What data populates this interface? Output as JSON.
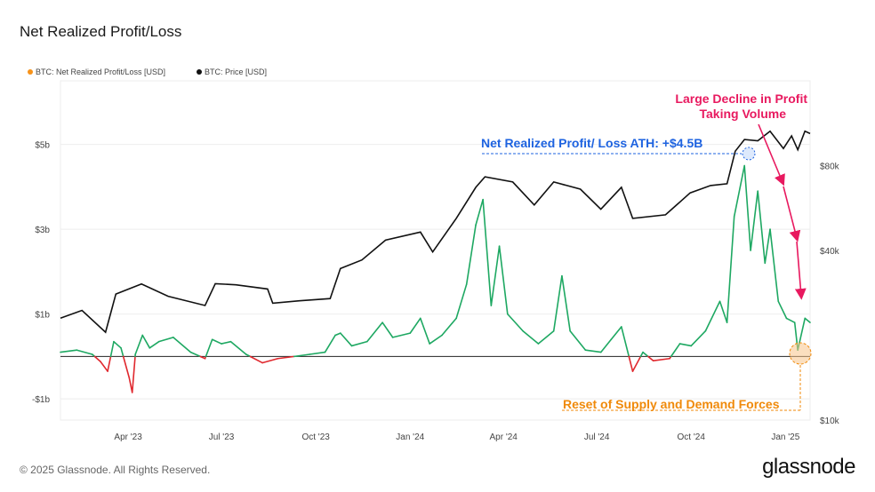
{
  "title": "Net Realized Profit/Loss",
  "footer": "© 2025 Glassnode. All Rights Reserved.",
  "brand": "glassnode",
  "colors": {
    "profit": "#1ea862",
    "loss": "#e0282e",
    "price": "#111111",
    "legend_nrpl": "#f7931a",
    "legend_price": "#111111",
    "pink": "#e8195f",
    "blue": "#1e63e0",
    "orange": "#f08a0a"
  },
  "chart_data": {
    "type": "line",
    "legend": [
      {
        "label": "BTC: Net Realized Profit/Loss [USD]",
        "color": "#f7931a"
      },
      {
        "label": "BTC: Price [USD]",
        "color": "#111111"
      }
    ],
    "x_ticks": [
      "Apr '23",
      "Jul '23",
      "Oct '23",
      "Jan '24",
      "Apr '24",
      "Jul '24",
      "Oct '24",
      "Jan '25"
    ],
    "x_tick_dates": [
      "2023-04-01",
      "2023-07-01",
      "2023-10-01",
      "2024-01-01",
      "2024-04-01",
      "2024-07-01",
      "2024-10-01",
      "2025-01-01"
    ],
    "x_range": [
      "2023-01-25",
      "2025-01-25"
    ],
    "y_left": {
      "label": "",
      "ticks": [
        "-$1b",
        "$1b",
        "$3b",
        "$5b"
      ],
      "tick_values": [
        -1,
        1,
        3,
        5
      ],
      "range": [
        -1.5,
        6.5
      ],
      "unit": "USD billions"
    },
    "y_right": {
      "label": "",
      "scale": "log",
      "ticks": [
        "$10k",
        "$40k",
        "$80k"
      ],
      "tick_values": [
        10000,
        40000,
        80000
      ],
      "range": [
        10000,
        160000
      ]
    },
    "series": [
      {
        "name": "BTC: Net Realized Profit/Loss [USD]",
        "axis": "left",
        "points": [
          [
            "2023-01-25",
            0.1
          ],
          [
            "2023-02-10",
            0.15
          ],
          [
            "2023-02-25",
            0.05
          ],
          [
            "2023-03-05",
            -0.12
          ],
          [
            "2023-03-12",
            -0.35
          ],
          [
            "2023-03-18",
            0.35
          ],
          [
            "2023-03-25",
            0.2
          ],
          [
            "2023-04-02",
            -0.5
          ],
          [
            "2023-04-05",
            -0.85
          ],
          [
            "2023-04-08",
            0.05
          ],
          [
            "2023-04-15",
            0.5
          ],
          [
            "2023-04-22",
            0.2
          ],
          [
            "2023-05-01",
            0.35
          ],
          [
            "2023-05-15",
            0.45
          ],
          [
            "2023-06-01",
            0.1
          ],
          [
            "2023-06-15",
            -0.05
          ],
          [
            "2023-06-22",
            0.4
          ],
          [
            "2023-07-01",
            0.3
          ],
          [
            "2023-07-10",
            0.35
          ],
          [
            "2023-07-25",
            0.05
          ],
          [
            "2023-08-10",
            -0.15
          ],
          [
            "2023-08-25",
            -0.05
          ],
          [
            "2023-09-10",
            0.0
          ],
          [
            "2023-09-25",
            0.05
          ],
          [
            "2023-10-10",
            0.1
          ],
          [
            "2023-10-20",
            0.5
          ],
          [
            "2023-10-25",
            0.55
          ],
          [
            "2023-11-05",
            0.25
          ],
          [
            "2023-11-20",
            0.35
          ],
          [
            "2023-12-05",
            0.8
          ],
          [
            "2023-12-15",
            0.45
          ],
          [
            "2024-01-01",
            0.55
          ],
          [
            "2024-01-11",
            0.9
          ],
          [
            "2024-01-20",
            0.3
          ],
          [
            "2024-02-01",
            0.5
          ],
          [
            "2024-02-15",
            0.9
          ],
          [
            "2024-02-25",
            1.7
          ],
          [
            "2024-03-05",
            3.1
          ],
          [
            "2024-03-12",
            3.7
          ],
          [
            "2024-03-20",
            1.2
          ],
          [
            "2024-03-28",
            2.6
          ],
          [
            "2024-04-05",
            1.0
          ],
          [
            "2024-04-20",
            0.6
          ],
          [
            "2024-05-05",
            0.3
          ],
          [
            "2024-05-20",
            0.6
          ],
          [
            "2024-05-28",
            1.9
          ],
          [
            "2024-06-05",
            0.6
          ],
          [
            "2024-06-20",
            0.15
          ],
          [
            "2024-07-05",
            0.1
          ],
          [
            "2024-07-15",
            0.4
          ],
          [
            "2024-07-25",
            0.7
          ],
          [
            "2024-08-05",
            -0.35
          ],
          [
            "2024-08-15",
            0.1
          ],
          [
            "2024-08-25",
            -0.1
          ],
          [
            "2024-09-10",
            -0.05
          ],
          [
            "2024-09-20",
            0.3
          ],
          [
            "2024-10-01",
            0.25
          ],
          [
            "2024-10-15",
            0.6
          ],
          [
            "2024-10-29",
            1.3
          ],
          [
            "2024-11-05",
            0.8
          ],
          [
            "2024-11-12",
            3.3
          ],
          [
            "2024-11-22",
            4.5
          ],
          [
            "2024-11-28",
            2.5
          ],
          [
            "2024-12-05",
            3.9
          ],
          [
            "2024-12-12",
            2.2
          ],
          [
            "2024-12-17",
            3.0
          ],
          [
            "2024-12-25",
            1.3
          ],
          [
            "2025-01-02",
            0.9
          ],
          [
            "2025-01-10",
            0.8
          ],
          [
            "2025-01-13",
            0.15
          ],
          [
            "2025-01-20",
            0.9
          ],
          [
            "2025-01-25",
            0.8
          ]
        ]
      },
      {
        "name": "BTC: Price [USD]",
        "axis": "right",
        "points": [
          [
            "2023-01-25",
            23000
          ],
          [
            "2023-02-15",
            24500
          ],
          [
            "2023-03-10",
            20500
          ],
          [
            "2023-03-20",
            28000
          ],
          [
            "2023-04-14",
            30400
          ],
          [
            "2023-05-10",
            27500
          ],
          [
            "2023-06-15",
            25500
          ],
          [
            "2023-06-25",
            30500
          ],
          [
            "2023-07-15",
            30200
          ],
          [
            "2023-08-15",
            29200
          ],
          [
            "2023-08-20",
            26000
          ],
          [
            "2023-09-15",
            26500
          ],
          [
            "2023-10-15",
            27000
          ],
          [
            "2023-10-25",
            34500
          ],
          [
            "2023-11-15",
            37000
          ],
          [
            "2023-12-08",
            43500
          ],
          [
            "2024-01-11",
            46500
          ],
          [
            "2024-01-23",
            39500
          ],
          [
            "2024-02-15",
            52000
          ],
          [
            "2024-03-05",
            67000
          ],
          [
            "2024-03-14",
            73000
          ],
          [
            "2024-04-10",
            70000
          ],
          [
            "2024-05-01",
            58000
          ],
          [
            "2024-05-20",
            70000
          ],
          [
            "2024-06-15",
            66000
          ],
          [
            "2024-07-05",
            56000
          ],
          [
            "2024-07-25",
            67000
          ],
          [
            "2024-08-05",
            52000
          ],
          [
            "2024-09-06",
            53500
          ],
          [
            "2024-09-30",
            64000
          ],
          [
            "2024-10-20",
            68000
          ],
          [
            "2024-11-05",
            69000
          ],
          [
            "2024-11-13",
            90000
          ],
          [
            "2024-11-22",
            99000
          ],
          [
            "2024-12-05",
            98000
          ],
          [
            "2024-12-17",
            106000
          ],
          [
            "2024-12-30",
            92000
          ],
          [
            "2025-01-07",
            102000
          ],
          [
            "2025-01-13",
            91000
          ],
          [
            "2025-01-20",
            106000
          ],
          [
            "2025-01-25",
            104000
          ]
        ]
      }
    ],
    "annotations": {
      "ath_label": "Net Realized Profit/ Loss ATH: +$4.5B",
      "decline_line1": "Large Decline in Profit",
      "decline_line2": "Taking Volume",
      "reset_label": "Reset of Supply and Demand Forces"
    },
    "grid": "horizontal",
    "legend_position": "top-left"
  }
}
